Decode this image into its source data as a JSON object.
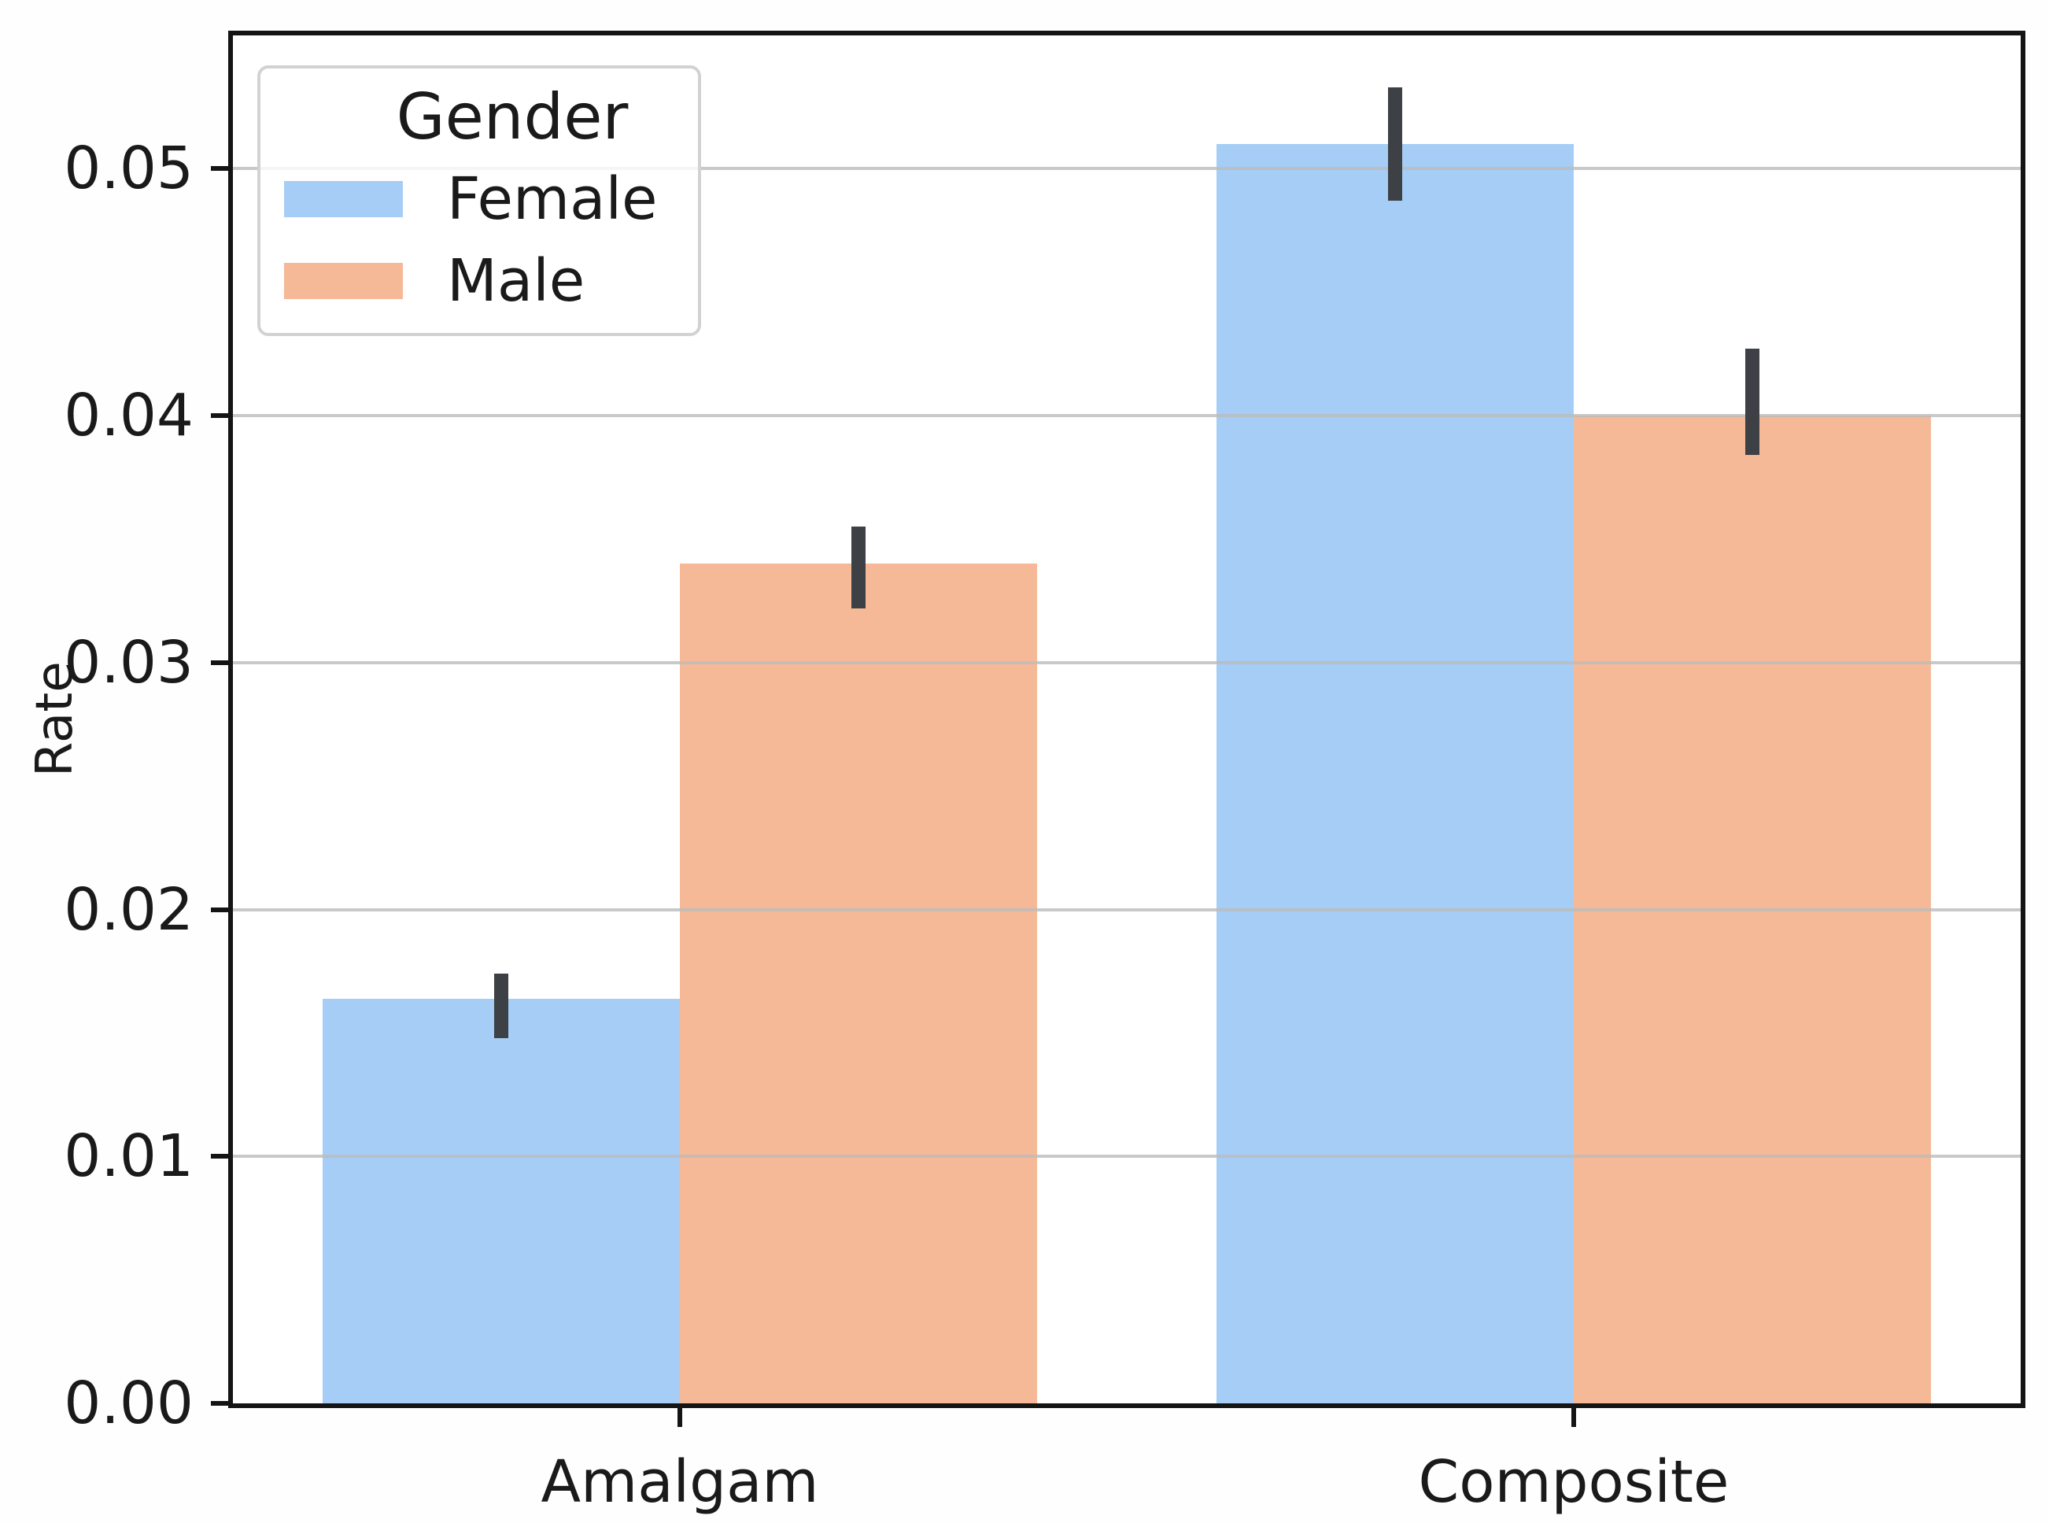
{
  "chart_data": {
    "type": "bar",
    "title": "",
    "xlabel": "",
    "ylabel": "Rate",
    "categories": [
      "Amalgam",
      "Composite"
    ],
    "yticks": [
      "0.00",
      "0.01",
      "0.02",
      "0.03",
      "0.04",
      "0.05"
    ],
    "ylim": [
      0,
      0.0554
    ],
    "grid": "horizontal gridlines on",
    "legend": {
      "title": "Gender",
      "position": "upper left",
      "entries": [
        "Female",
        "Male"
      ]
    },
    "series": [
      {
        "name": "Female",
        "color": "#a5cdf5",
        "values": [
          0.0164,
          0.051
        ],
        "ci_low": [
          0.0148,
          0.0487
        ],
        "ci_high": [
          0.0174,
          0.0533
        ]
      },
      {
        "name": "Male",
        "color": "#f5b997",
        "values": [
          0.034,
          0.04
        ],
        "ci_low": [
          0.0322,
          0.0384
        ],
        "ci_high": [
          0.0355,
          0.0427
        ]
      }
    ],
    "error_bar_color": "#3d4044",
    "axis_color": "#141414",
    "grid_color": "#bcbcbc",
    "text_color": "#1a1a1a"
  }
}
